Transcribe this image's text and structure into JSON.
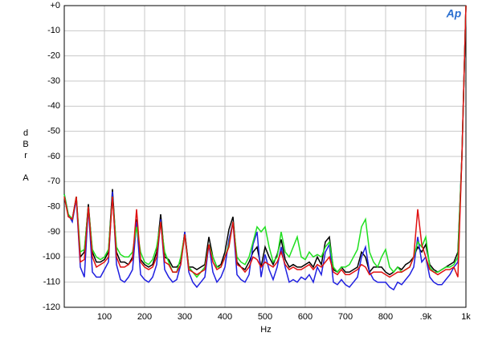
{
  "chart_data": {
    "type": "line",
    "logo": "Ap",
    "xlabel": "Hz",
    "ylabel": "dBr A",
    "x": [
      0,
      10,
      20,
      30,
      40,
      50,
      60,
      70,
      80,
      90,
      100,
      110,
      120,
      130,
      140,
      150,
      160,
      170,
      180,
      190,
      200,
      210,
      220,
      230,
      240,
      250,
      260,
      270,
      280,
      290,
      300,
      310,
      320,
      330,
      340,
      350,
      360,
      370,
      380,
      390,
      400,
      410,
      420,
      430,
      440,
      450,
      460,
      470,
      480,
      490,
      500,
      510,
      520,
      530,
      540,
      550,
      560,
      570,
      580,
      590,
      600,
      610,
      620,
      630,
      640,
      650,
      660,
      670,
      680,
      690,
      700,
      710,
      720,
      730,
      740,
      750,
      760,
      770,
      780,
      790,
      800,
      810,
      820,
      830,
      840,
      850,
      860,
      870,
      880,
      890,
      900,
      910,
      920,
      930,
      940,
      950,
      960,
      970,
      980,
      990,
      1000
    ],
    "series": [
      {
        "name": "black",
        "color": "#000000",
        "values": [
          -75,
          -83,
          -85,
          -76,
          -100,
          -98,
          -79,
          -98,
          -102,
          -102,
          -101,
          -98,
          -73,
          -98,
          -102,
          -102,
          -103,
          -100,
          -85,
          -101,
          -103,
          -104,
          -103,
          -98,
          -83,
          -100,
          -101,
          -104,
          -104,
          -102,
          -90,
          -104,
          -104,
          -105,
          -104,
          -103,
          -92,
          -100,
          -104,
          -103,
          -98,
          -89,
          -84,
          -102,
          -104,
          -105,
          -102,
          -98,
          -96,
          -104,
          -96,
          -100,
          -103,
          -99,
          -93,
          -101,
          -104,
          -103,
          -104,
          -104,
          -103,
          -102,
          -104,
          -100,
          -103,
          -94,
          -92,
          -105,
          -106,
          -104,
          -106,
          -106,
          -105,
          -104,
          -98,
          -100,
          -106,
          -104,
          -104,
          -104,
          -106,
          -107,
          -106,
          -104,
          -105,
          -103,
          -102,
          -100,
          -96,
          -98,
          -95,
          -103,
          -105,
          -106,
          -105,
          -104,
          -103,
          -102,
          -98,
          -60,
          0
        ]
      },
      {
        "name": "blue",
        "color": "#2020e0",
        "values": [
          -75,
          -83,
          -86,
          -77,
          -104,
          -108,
          -80,
          -106,
          -108,
          -108,
          -105,
          -102,
          -74,
          -103,
          -109,
          -110,
          -108,
          -105,
          -86,
          -107,
          -109,
          -110,
          -108,
          -103,
          -85,
          -105,
          -108,
          -110,
          -109,
          -103,
          -90,
          -106,
          -110,
          -112,
          -110,
          -108,
          -95,
          -106,
          -110,
          -108,
          -104,
          -93,
          -86,
          -107,
          -109,
          -110,
          -107,
          -95,
          -90,
          -108,
          -99,
          -105,
          -109,
          -104,
          -96,
          -104,
          -110,
          -109,
          -110,
          -108,
          -109,
          -107,
          -110,
          -104,
          -107,
          -98,
          -95,
          -110,
          -111,
          -109,
          -111,
          -112,
          -110,
          -108,
          -100,
          -96,
          -106,
          -109,
          -110,
          -110,
          -110,
          -112,
          -113,
          -110,
          -111,
          -109,
          -107,
          -104,
          -92,
          -102,
          -100,
          -108,
          -110,
          -111,
          -111,
          -109,
          -107,
          -104,
          -102,
          -60,
          0
        ]
      },
      {
        "name": "green",
        "color": "#20e020",
        "values": [
          -75,
          -83,
          -85,
          -76,
          -98,
          -97,
          -80,
          -97,
          -100,
          -101,
          -100,
          -97,
          -76,
          -96,
          -99,
          -100,
          -100,
          -98,
          -88,
          -98,
          -102,
          -103,
          -101,
          -96,
          -86,
          -98,
          -102,
          -106,
          -106,
          -100,
          -91,
          -104,
          -106,
          -108,
          -106,
          -104,
          -95,
          -100,
          -104,
          -104,
          -100,
          -95,
          -86,
          -100,
          -102,
          -103,
          -100,
          -94,
          -88,
          -90,
          -88,
          -96,
          -102,
          -100,
          -90,
          -98,
          -100,
          -96,
          -92,
          -100,
          -101,
          -98,
          -100,
          -99,
          -100,
          -96,
          -94,
          -104,
          -106,
          -104,
          -104,
          -103,
          -100,
          -97,
          -88,
          -85,
          -98,
          -102,
          -104,
          -100,
          -97,
          -104,
          -106,
          -104,
          -106,
          -105,
          -104,
          -100,
          -94,
          -96,
          -92,
          -104,
          -106,
          -106,
          -105,
          -104,
          -104,
          -103,
          -100,
          -60,
          0
        ]
      },
      {
        "name": "red",
        "color": "#e01010",
        "values": [
          -76,
          -84,
          -85,
          -76,
          -102,
          -101,
          -80,
          -100,
          -104,
          -103,
          -102,
          -100,
          -76,
          -100,
          -104,
          -104,
          -103,
          -101,
          -81,
          -102,
          -104,
          -105,
          -104,
          -100,
          -86,
          -102,
          -103,
          -106,
          -106,
          -103,
          -91,
          -105,
          -106,
          -107,
          -106,
          -105,
          -95,
          -102,
          -105,
          -104,
          -100,
          -96,
          -86,
          -103,
          -104,
          -106,
          -104,
          -100,
          -101,
          -104,
          -102,
          -103,
          -104,
          -102,
          -98,
          -103,
          -105,
          -104,
          -105,
          -105,
          -104,
          -103,
          -105,
          -103,
          -104,
          -102,
          -100,
          -106,
          -107,
          -105,
          -107,
          -107,
          -106,
          -105,
          -103,
          -104,
          -107,
          -106,
          -106,
          -106,
          -107,
          -108,
          -107,
          -106,
          -106,
          -105,
          -104,
          -100,
          -81,
          -95,
          -100,
          -105,
          -106,
          -107,
          -106,
          -105,
          -105,
          -104,
          -108,
          -60,
          0
        ]
      }
    ],
    "xlim": [
      0,
      1000
    ],
    "xticks": [
      100,
      200,
      300,
      400,
      500,
      600,
      700,
      800,
      {
        "value": 900,
        "label": ".9k"
      },
      {
        "value": 1000,
        "label": "1k"
      }
    ],
    "ylim": [
      -120,
      0
    ],
    "yticks": [
      {
        "value": 0,
        "label": "+0"
      },
      -10,
      -20,
      -30,
      -40,
      -50,
      -60,
      -70,
      -80,
      -90,
      -100,
      -110,
      -120
    ],
    "grid": true
  }
}
